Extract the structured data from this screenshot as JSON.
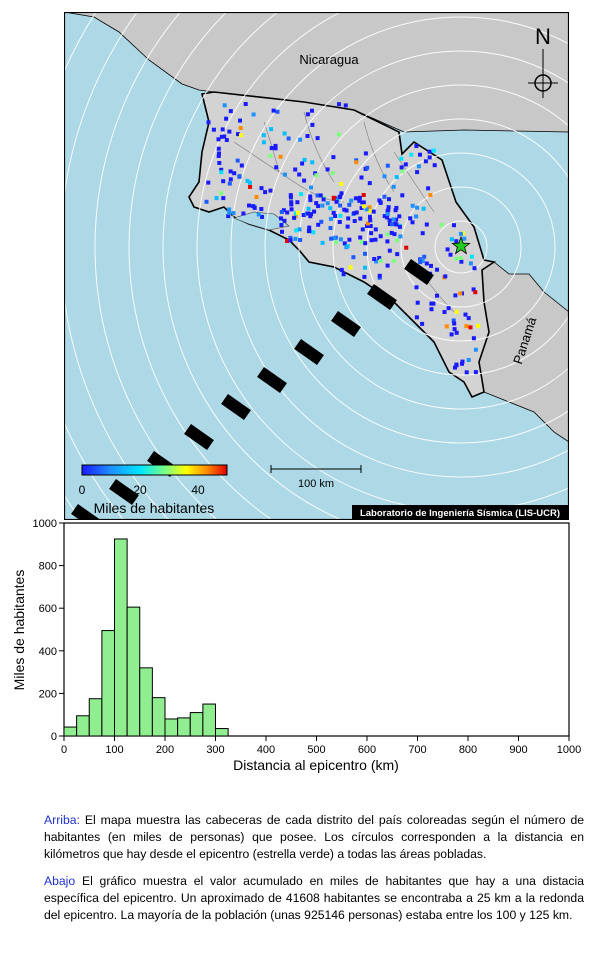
{
  "map": {
    "labels": {
      "nicaragua": "Nicaragua",
      "panama": "Panamá",
      "north": "N",
      "scale": "100 km",
      "credit": "Laboratorio de Ingeniería Sísmica (LIS-UCR)"
    },
    "colorbar": {
      "ticks": [
        "0",
        "20",
        "40"
      ],
      "label": "Miles de habitantes",
      "colors": [
        "#1a1aff",
        "#1e90ff",
        "#00e5ff",
        "#7fff7f",
        "#ffff00",
        "#ff8c00",
        "#e00000"
      ]
    },
    "colors": {
      "sea": "#add8e6",
      "land": "#d3d3d3",
      "country": "#c8c8c8",
      "epicenter": "#22cc22"
    }
  },
  "chart_data": {
    "type": "bar",
    "title": "",
    "xlabel": "Distancia al epicentro (km)",
    "ylabel": "Miles de habitantes",
    "xlim": [
      0,
      1000
    ],
    "ylim": [
      0,
      1000
    ],
    "x_ticks": [
      "0",
      "100",
      "200",
      "300",
      "400",
      "500",
      "600",
      "700",
      "800",
      "900",
      "1000"
    ],
    "y_ticks": [
      "0",
      "200",
      "400",
      "600",
      "800",
      "1000"
    ],
    "bin_width": 25,
    "bin_starts": [
      0,
      25,
      50,
      75,
      100,
      125,
      150,
      175,
      200,
      225,
      250,
      275,
      300
    ],
    "values": [
      42,
      95,
      175,
      495,
      925,
      605,
      320,
      180,
      80,
      85,
      110,
      150,
      35
    ],
    "bar_color": "#90ee90",
    "grid": false
  },
  "caption": {
    "p1_lead": "Arriba:",
    "p1_text": " El mapa muestra las cabeceras de cada distrito del país coloreadas según el número de habitantes (en miles de personas) que posee.  Los círculos corresponden a la distancia en kilómetros que hay desde el epicentro (estrella verde) a todas las áreas pobladas.",
    "p2_lead": "Abajo",
    "p2_text": " El gráfico muestra el valor acumulado en miles de habitantes que hay a una distacia específica del epicentro.  Un aproximado de 41608 habitantes se encontraba a 25 km a la redonda del epicentro.  La mayoría de la población (unas 925146 personas) estaba entre los 100 y 125 km."
  }
}
